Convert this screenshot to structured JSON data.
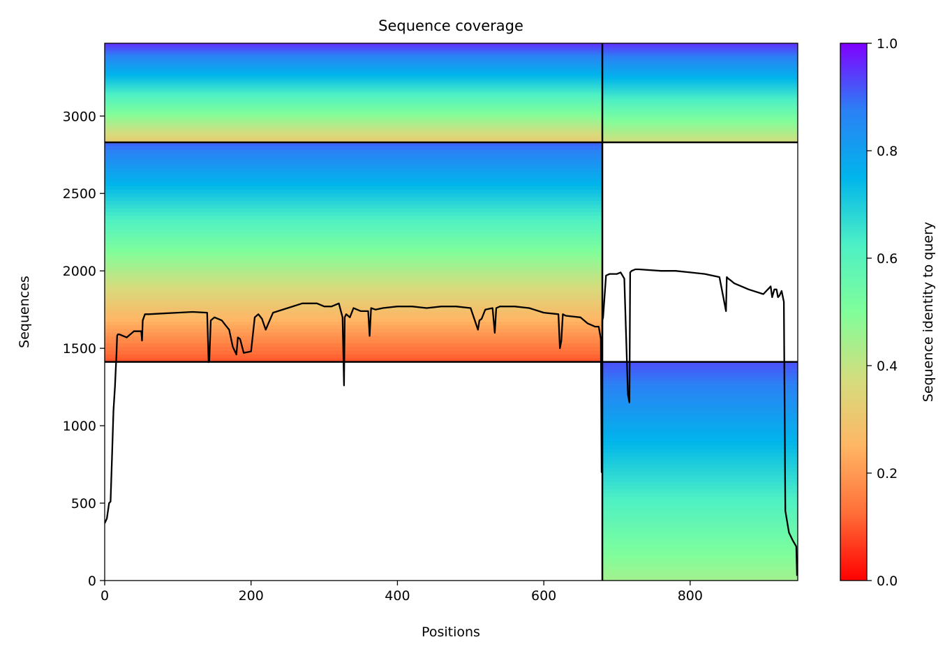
{
  "chart_data": {
    "type": "heatmap",
    "title": "Sequence coverage",
    "xlabel": "Positions",
    "ylabel": "Sequences",
    "xlim": [
      0,
      947
    ],
    "ylim": [
      0,
      3470
    ],
    "xticks": [
      0,
      200,
      400,
      600,
      800
    ],
    "yticks": [
      0,
      500,
      1000,
      1500,
      2000,
      2500,
      3000
    ],
    "grid": false,
    "colorbar": {
      "label": "Sequence identity to query",
      "colormap": "rainbow",
      "range": [
        0,
        1
      ],
      "ticks": [
        "0.0",
        "0.2",
        "0.4",
        "0.6",
        "0.8",
        "1.0"
      ],
      "colors": [
        "#ff0000",
        "#ff6e38",
        "#ffb665",
        "#d4dd7e",
        "#80fe9a",
        "#4df0c5",
        "#00b5eb",
        "#2b81f5",
        "#8000ff"
      ]
    },
    "block_boundaries": {
      "x": [
        680
      ],
      "y": [
        1412,
        2830
      ]
    },
    "blocks": [
      {
        "x_range": [
          0,
          680
        ],
        "y_range": [
          2830,
          3470
        ],
        "identity_top": 0.95,
        "identity_bottom": 0.32
      },
      {
        "x_range": [
          680,
          947
        ],
        "y_range": [
          2830,
          3470
        ],
        "identity_top": 0.95,
        "identity_bottom": 0.38
      },
      {
        "x_range": [
          0,
          680
        ],
        "y_range": [
          1412,
          2830
        ],
        "identity_top": 0.9,
        "identity_bottom": 0.1
      },
      {
        "x_range": [
          680,
          947
        ],
        "y_range": [
          0,
          1412
        ],
        "identity_top": 0.92,
        "identity_bottom": 0.45
      }
    ],
    "coverage_line": {
      "color": "#000000",
      "x": [
        0,
        3,
        6,
        8,
        10,
        12,
        14,
        15,
        16,
        17,
        18,
        20,
        30,
        40,
        50,
        51,
        52,
        55,
        60,
        80,
        100,
        120,
        140,
        142,
        143,
        145,
        150,
        160,
        165,
        170,
        175,
        180,
        182,
        185,
        190,
        200,
        205,
        210,
        215,
        220,
        230,
        250,
        270,
        290,
        300,
        310,
        320,
        325,
        327,
        328,
        330,
        335,
        340,
        350,
        360,
        362,
        364,
        370,
        380,
        400,
        420,
        440,
        460,
        480,
        500,
        510,
        512,
        515,
        520,
        530,
        533,
        535,
        540,
        560,
        580,
        600,
        620,
        622,
        624,
        626,
        630,
        650,
        660,
        670,
        675,
        678,
        679,
        680,
        681,
        685,
        690,
        700,
        705,
        710,
        715,
        717,
        718,
        720,
        725,
        730,
        760,
        780,
        800,
        820,
        840,
        849,
        850,
        852,
        855,
        860,
        880,
        900,
        910,
        912,
        915,
        918,
        920,
        922,
        925,
        928,
        930,
        935,
        940,
        945,
        946
      ],
      "y": [
        370,
        400,
        500,
        510,
        800,
        1100,
        1250,
        1350,
        1450,
        1580,
        1590,
        1590,
        1570,
        1610,
        1610,
        1550,
        1680,
        1720,
        1720,
        1725,
        1730,
        1735,
        1730,
        1410,
        1420,
        1680,
        1700,
        1680,
        1650,
        1620,
        1510,
        1460,
        1570,
        1560,
        1470,
        1480,
        1700,
        1720,
        1690,
        1620,
        1730,
        1760,
        1790,
        1790,
        1770,
        1770,
        1790,
        1700,
        1260,
        1700,
        1720,
        1700,
        1760,
        1740,
        1740,
        1580,
        1760,
        1750,
        1760,
        1770,
        1770,
        1760,
        1770,
        1770,
        1760,
        1620,
        1680,
        1690,
        1750,
        1760,
        1600,
        1760,
        1770,
        1770,
        1760,
        1730,
        1720,
        1500,
        1550,
        1720,
        1710,
        1700,
        1660,
        1640,
        1640,
        1560,
        700,
        1680,
        1700,
        1970,
        1980,
        1980,
        1990,
        1950,
        1200,
        1150,
        1990,
        2000,
        2010,
        2010,
        2000,
        2000,
        1990,
        1980,
        1960,
        1740,
        1960,
        1950,
        1940,
        1920,
        1880,
        1850,
        1900,
        1830,
        1880,
        1880,
        1830,
        1840,
        1870,
        1800,
        450,
        310,
        260,
        220,
        30
      ]
    }
  }
}
